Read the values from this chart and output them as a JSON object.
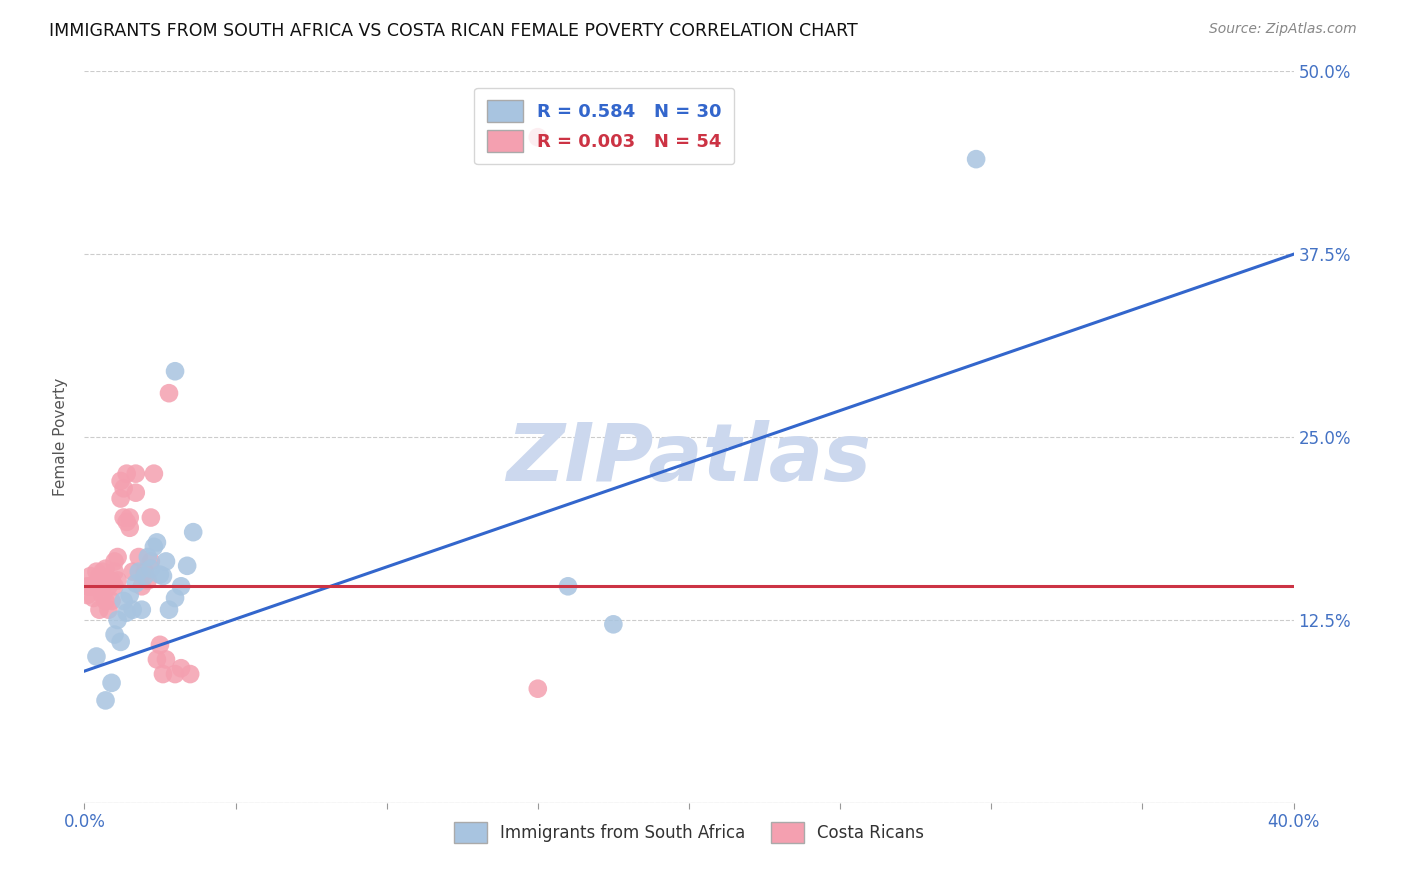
{
  "title": "IMMIGRANTS FROM SOUTH AFRICA VS COSTA RICAN FEMALE POVERTY CORRELATION CHART",
  "source": "Source: ZipAtlas.com",
  "ylabel": "Female Poverty",
  "xlim": [
    0.0,
    0.4
  ],
  "ylim": [
    0.0,
    0.5
  ],
  "yticks": [
    0.0,
    0.125,
    0.25,
    0.375,
    0.5
  ],
  "ytick_labels": [
    "",
    "12.5%",
    "25.0%",
    "37.5%",
    "50.0%"
  ],
  "xticks": [
    0.0,
    0.05,
    0.1,
    0.15,
    0.2,
    0.25,
    0.3,
    0.35,
    0.4
  ],
  "xtick_labels": [
    "0.0%",
    "",
    "",
    "",
    "",
    "",
    "",
    "",
    "40.0%"
  ],
  "blue_r": 0.584,
  "blue_n": 30,
  "pink_r": 0.003,
  "pink_n": 54,
  "blue_color": "#a8c4e0",
  "pink_color": "#f4a0b0",
  "blue_line_color": "#3366cc",
  "pink_line_color": "#cc3344",
  "watermark": "ZIPatlas",
  "watermark_color": "#ccd8ee",
  "legend_blue_label": "Immigrants from South Africa",
  "legend_pink_label": "Costa Ricans",
  "blue_line_x": [
    0.0,
    0.4
  ],
  "blue_line_y": [
    0.09,
    0.375
  ],
  "pink_line_x": [
    0.0,
    0.4
  ],
  "pink_line_y": [
    0.148,
    0.148
  ],
  "blue_scatter_x": [
    0.004,
    0.007,
    0.009,
    0.01,
    0.011,
    0.012,
    0.013,
    0.014,
    0.015,
    0.016,
    0.017,
    0.018,
    0.019,
    0.02,
    0.021,
    0.022,
    0.023,
    0.024,
    0.025,
    0.026,
    0.027,
    0.028,
    0.03,
    0.032,
    0.034,
    0.036,
    0.16,
    0.175,
    0.03,
    0.295
  ],
  "blue_scatter_y": [
    0.1,
    0.07,
    0.082,
    0.115,
    0.125,
    0.11,
    0.138,
    0.13,
    0.142,
    0.132,
    0.15,
    0.158,
    0.132,
    0.155,
    0.168,
    0.16,
    0.175,
    0.178,
    0.156,
    0.155,
    0.165,
    0.132,
    0.14,
    0.148,
    0.162,
    0.185,
    0.148,
    0.122,
    0.295,
    0.44
  ],
  "pink_scatter_x": [
    0.001,
    0.001,
    0.002,
    0.002,
    0.003,
    0.003,
    0.004,
    0.004,
    0.005,
    0.005,
    0.005,
    0.006,
    0.006,
    0.006,
    0.007,
    0.007,
    0.007,
    0.008,
    0.008,
    0.009,
    0.009,
    0.01,
    0.01,
    0.01,
    0.011,
    0.011,
    0.012,
    0.012,
    0.013,
    0.013,
    0.014,
    0.014,
    0.015,
    0.015,
    0.016,
    0.017,
    0.017,
    0.018,
    0.019,
    0.02,
    0.021,
    0.022,
    0.022,
    0.023,
    0.024,
    0.025,
    0.026,
    0.027,
    0.028,
    0.03,
    0.032,
    0.035,
    0.15,
    0.15
  ],
  "pink_scatter_y": [
    0.142,
    0.148,
    0.148,
    0.155,
    0.14,
    0.148,
    0.15,
    0.158,
    0.132,
    0.148,
    0.155,
    0.142,
    0.148,
    0.158,
    0.138,
    0.15,
    0.16,
    0.132,
    0.148,
    0.138,
    0.152,
    0.148,
    0.158,
    0.165,
    0.152,
    0.168,
    0.208,
    0.22,
    0.195,
    0.215,
    0.192,
    0.225,
    0.188,
    0.195,
    0.158,
    0.212,
    0.225,
    0.168,
    0.148,
    0.158,
    0.152,
    0.165,
    0.195,
    0.225,
    0.098,
    0.108,
    0.088,
    0.098,
    0.28,
    0.088,
    0.092,
    0.088,
    0.078,
    0.455
  ]
}
